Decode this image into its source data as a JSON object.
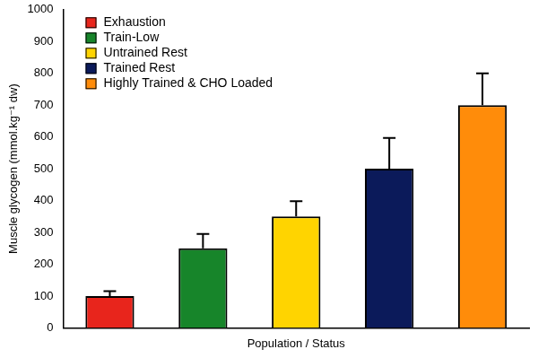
{
  "chart_data": {
    "type": "bar",
    "categories": [
      "Exhaustion",
      "Train-Low",
      "Untrained Rest",
      "Trained Rest",
      "Highly Trained & CHO Loaded"
    ],
    "values": [
      100,
      250,
      350,
      500,
      700
    ],
    "errors": [
      15,
      45,
      48,
      97,
      100
    ],
    "colors": [
      "#e8251c",
      "#17852a",
      "#ffd400",
      "#0b1a5a",
      "#ff8c0a"
    ],
    "x_label": "Population / Status",
    "y_label": "Muscle glycogen (mmol.kg⁻¹ dw)",
    "ylim": [
      0,
      1000
    ],
    "yticks": [
      0,
      100,
      200,
      300,
      400,
      500,
      600,
      700,
      800,
      900,
      1000
    ],
    "grid": false,
    "legend": "upper left",
    "tick_labels": "y"
  }
}
